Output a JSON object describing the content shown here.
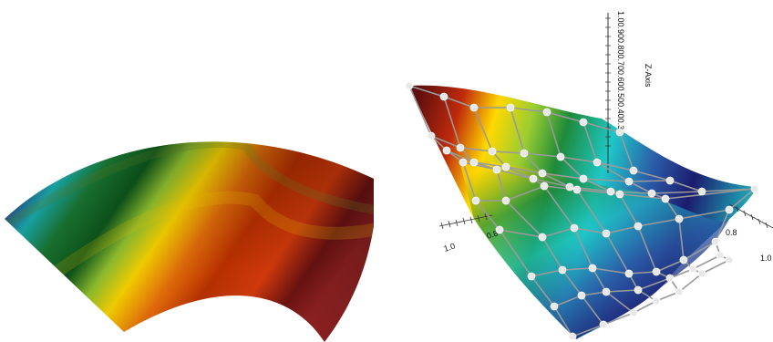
{
  "left_view": {
    "name": "2D color-mapped annular sector",
    "colormap": [
      "#1c1c6e",
      "#1ec8c8",
      "#1e8a3a",
      "#9acd32",
      "#ffd800",
      "#d03a0b",
      "#5e0f0f"
    ]
  },
  "right_view": {
    "z_axis": {
      "title": "Z-Axis",
      "tick_labels": [
        "1.0",
        "0.9",
        "0.8",
        "0.7",
        "0.6",
        "0.5",
        "0.4",
        "0.3"
      ],
      "tick_text": "1.00.900.800.700.600.500.400.30"
    },
    "x_axis": {
      "tick_labels": [
        "1.0",
        "0.8"
      ]
    },
    "y_axis": {
      "tick_labels": [
        "0.8",
        "1.0"
      ]
    },
    "control_points_color": "#e8e8e8",
    "colormap": [
      "#1c1c6e",
      "#1ec8c8",
      "#1e8a3a",
      "#9acd32",
      "#ffd800",
      "#d03a0b",
      "#5e0f0f"
    ]
  }
}
